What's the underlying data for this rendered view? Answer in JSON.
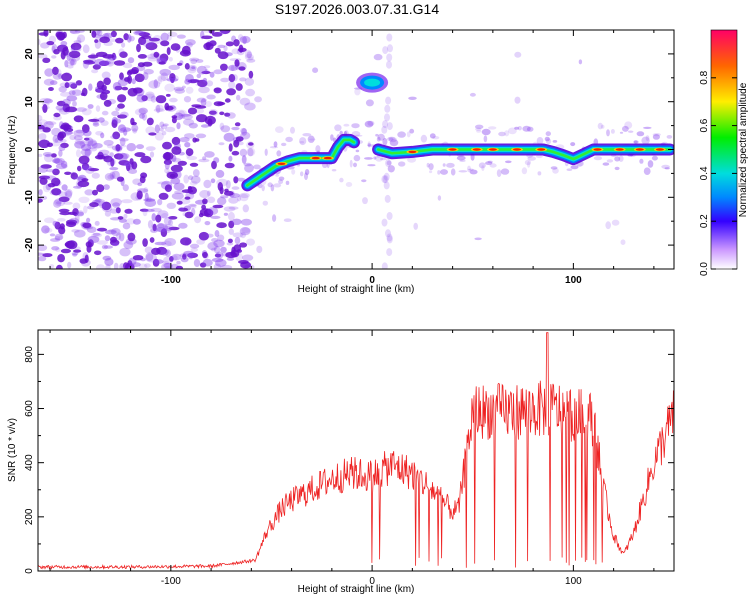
{
  "figure": {
    "title": "S197.2026.003.07.31.G14"
  },
  "colors": {
    "line": "#ee2222",
    "scatter_noise": "#8844ee",
    "scatter_dark": "#6611cc",
    "axes": "#000000"
  },
  "chart_data": [
    {
      "type": "heatmap",
      "name": "spectrogram",
      "xlabel": "Height of straight line (km)",
      "ylabel": "Frequency (Hz)",
      "xlim": [
        -166,
        150
      ],
      "ylim": [
        -25,
        25
      ],
      "x_ticks": [
        -100,
        0,
        100
      ],
      "y_ticks": [
        -20,
        -10,
        0,
        10,
        20
      ],
      "colorbar": {
        "label": "Normalized spectral amplitude",
        "range": [
          0,
          1
        ],
        "ticks": [
          0.0,
          0.2,
          0.4,
          0.6,
          0.8
        ]
      },
      "ridge": {
        "x": [
          -62,
          -55,
          -48,
          -42,
          -36,
          -30,
          -24,
          -20,
          -17,
          -14,
          -11,
          -9,
          3,
          10,
          20,
          30,
          40,
          50,
          60,
          70,
          80,
          85,
          90,
          95,
          100,
          110,
          120,
          130,
          140,
          148
        ],
        "y": [
          -7.5,
          -5.5,
          -3.5,
          -2.5,
          -1.8,
          -1.8,
          -1.8,
          -1.8,
          0.5,
          2.0,
          2.0,
          1.5,
          0,
          -0.8,
          -0.5,
          0,
          0,
          0,
          0,
          0,
          0,
          0,
          -0.5,
          -1.2,
          -2.0,
          0,
          0,
          0,
          0,
          0
        ]
      },
      "hotspot": {
        "x": 0,
        "y": 14
      }
    },
    {
      "type": "line",
      "name": "snr",
      "xlabel": "Height of straight line (km)",
      "ylabel": "SNR (10 * v/v)",
      "xlim": [
        -166,
        150
      ],
      "ylim": [
        0,
        890
      ],
      "x_ticks": [
        -100,
        0,
        100
      ],
      "y_ticks": [
        0,
        200,
        400,
        600,
        800
      ],
      "series": [
        {
          "name": "SNR",
          "envelope_x": [
            -166,
            -120,
            -80,
            -58,
            -52,
            -45,
            -40,
            -30,
            -20,
            -10,
            0,
            10,
            20,
            30,
            40,
            43,
            50,
            60,
            70,
            80,
            90,
            100,
            110,
            115,
            120,
            125,
            130,
            140,
            150
          ],
          "envelope_y": [
            15,
            15,
            18,
            40,
            150,
            230,
            260,
            300,
            340,
            360,
            350,
            390,
            360,
            300,
            220,
            230,
            590,
            590,
            590,
            595,
            600,
            580,
            560,
            300,
            130,
            60,
            140,
            400,
            580
          ],
          "peak": {
            "x": 87,
            "y": 880
          }
        }
      ]
    }
  ]
}
